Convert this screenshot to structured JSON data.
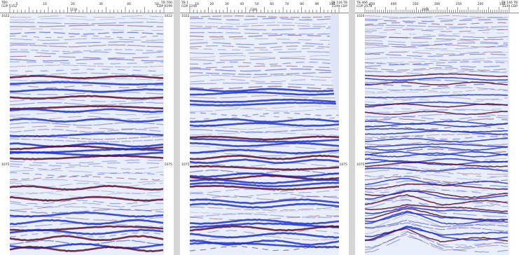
{
  "panels": [
    {
      "header_left": "TB0\nCDP 5152",
      "header_right": "TB 700\nCDP 6199",
      "header_mid": "5156",
      "tick_labels": [
        "5",
        "10",
        "20",
        "30",
        "40",
        "50"
      ],
      "time_top_left": "1022",
      "time_top_right": "1022",
      "time_mid_left": "1075",
      "time_mid_right": "1075"
    },
    {
      "header_left": "TB 1\nCDP 2246",
      "header_right": "TB 116 TB\n2349 CDP",
      "header_mid": "2280",
      "tick_labels": [
        "10",
        "20",
        "30",
        "40",
        "50",
        "60",
        "70",
        "80",
        "90",
        "100"
      ],
      "time_top_left": "1022",
      "time_top_right": "",
      "time_mid_left": "1075",
      "time_mid_right": "1075"
    },
    {
      "header_left": "TB 466\nCDP 2578",
      "header_right": "TB 146 TB\n3339 CDP",
      "header_mid": "2600",
      "tick_labels": [
        "450",
        "400",
        "350",
        "300",
        "250",
        "200",
        "150"
      ],
      "time_top_left": "1020",
      "time_top_right": "",
      "time_mid_left": "1075",
      "time_mid_right": ""
    }
  ],
  "colors": {
    "trough": "#1c2fd0",
    "peak": "#5a0c2e",
    "background": "#e9eefb",
    "separator": "#d6d6d6"
  }
}
